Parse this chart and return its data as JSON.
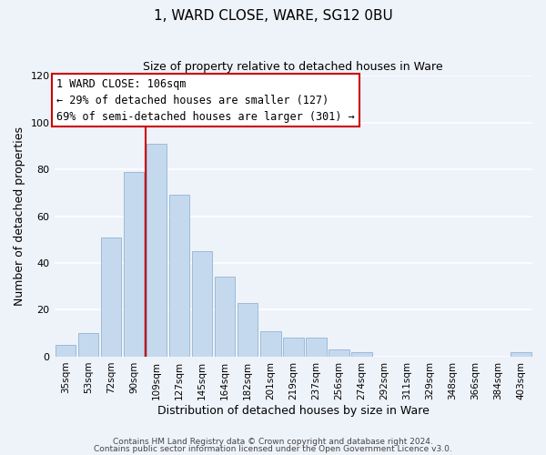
{
  "title": "1, WARD CLOSE, WARE, SG12 0BU",
  "subtitle": "Size of property relative to detached houses in Ware",
  "xlabel": "Distribution of detached houses by size in Ware",
  "ylabel": "Number of detached properties",
  "bar_labels": [
    "35sqm",
    "53sqm",
    "72sqm",
    "90sqm",
    "109sqm",
    "127sqm",
    "145sqm",
    "164sqm",
    "182sqm",
    "201sqm",
    "219sqm",
    "237sqm",
    "256sqm",
    "274sqm",
    "292sqm",
    "311sqm",
    "329sqm",
    "348sqm",
    "366sqm",
    "384sqm",
    "403sqm"
  ],
  "bar_heights": [
    5,
    10,
    51,
    79,
    91,
    69,
    45,
    34,
    23,
    11,
    8,
    8,
    3,
    2,
    0,
    0,
    0,
    0,
    0,
    0,
    2
  ],
  "bar_color": "#c5d9ee",
  "bar_edge_color": "#9bbbd8",
  "background_color": "#eef2f9",
  "grid_color": "#ffffff",
  "ylim": [
    0,
    120
  ],
  "yticks": [
    0,
    20,
    40,
    60,
    80,
    100,
    120
  ],
  "vline_x": 3.5,
  "vline_color": "#cc0000",
  "annotation_title": "1 WARD CLOSE: 106sqm",
  "annotation_line1": "← 29% of detached houses are smaller (127)",
  "annotation_line2": "69% of semi-detached houses are larger (301) →",
  "annotation_box_color": "#ffffff",
  "annotation_box_edge": "#cc0000",
  "footer1": "Contains HM Land Registry data © Crown copyright and database right 2024.",
  "footer2": "Contains public sector information licensed under the Open Government Licence v3.0."
}
